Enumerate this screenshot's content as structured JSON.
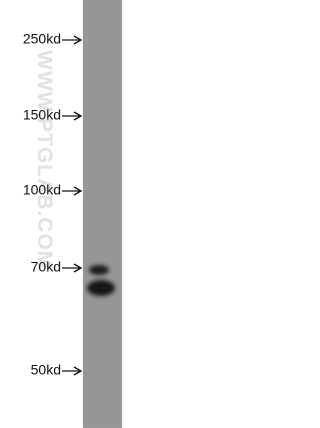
{
  "markers": [
    {
      "label": "250kd"
    },
    {
      "label": "150kd"
    },
    {
      "label": "100kd"
    },
    {
      "label": "70kd"
    },
    {
      "label": "50kd"
    }
  ],
  "watermark": "WWW.PTGLAB.COM"
}
